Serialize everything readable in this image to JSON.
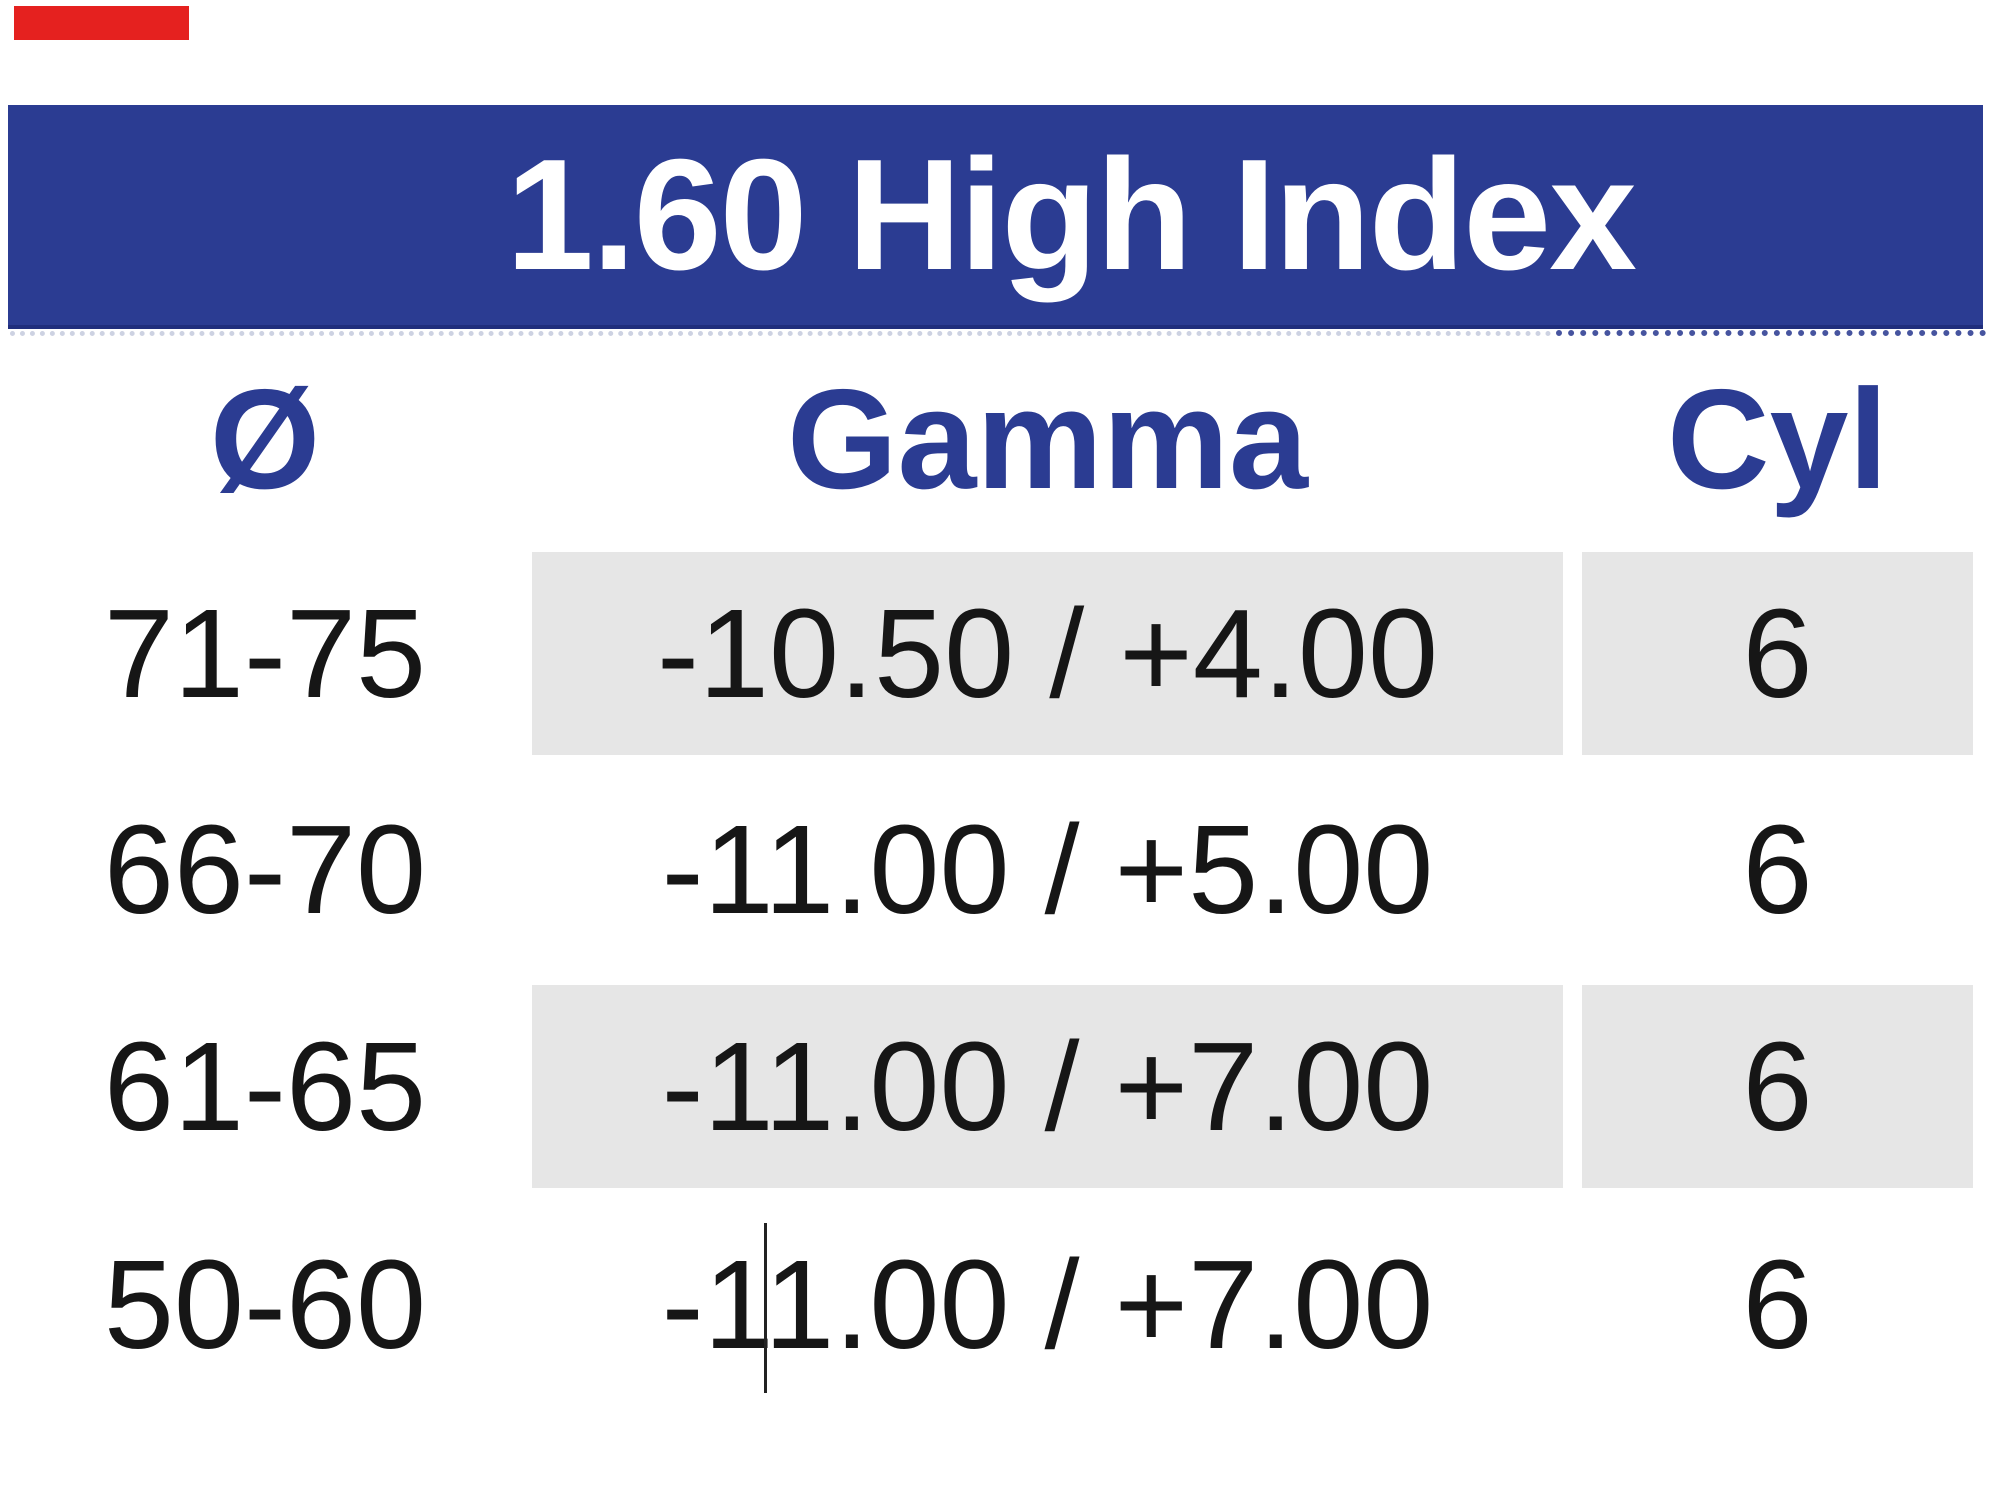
{
  "colors": {
    "accent": "#2b3c92",
    "accent_dark": "#202e7c",
    "stripe": "#e6e6e6",
    "marker": "#e5211f",
    "title_text": "#ffffff",
    "body_text": "#161616",
    "caret": "#222222",
    "dotted_left": "#cdd2e2",
    "dotted_right": "#46549f"
  },
  "header": {
    "title": "1.60 High Index"
  },
  "table": {
    "columns": [
      {
        "key": "diameter",
        "label": "Ø"
      },
      {
        "key": "gamma",
        "label": "Gamma"
      },
      {
        "key": "cyl",
        "label": "Cyl"
      }
    ],
    "rows": [
      {
        "diameter": "71-75",
        "gamma": "-10.50 / +4.00",
        "cyl": "6",
        "striped": true
      },
      {
        "diameter": "66-70",
        "gamma": "-11.00 / +5.00",
        "cyl": "6",
        "striped": false
      },
      {
        "diameter": "61-65",
        "gamma": "-11.00 / +7.00",
        "cyl": "6",
        "striped": true
      },
      {
        "diameter": "50-60",
        "gamma": "-11.00 / +7.00",
        "cyl": "6",
        "striped": false
      }
    ]
  },
  "caret": {
    "present": true,
    "row_index": 3,
    "position_in_text": "between -1 and 1.00"
  }
}
